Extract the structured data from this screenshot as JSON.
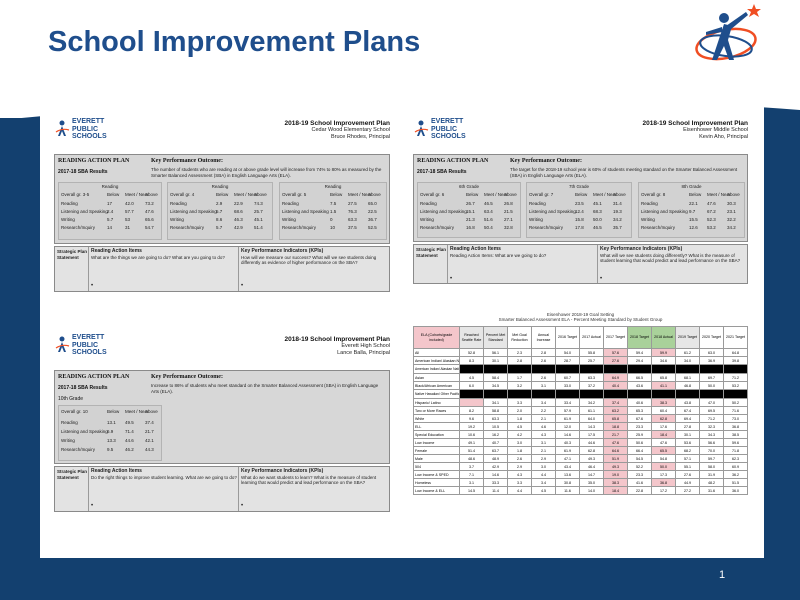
{
  "slide": {
    "title": "School Improvement Plans",
    "page_number": "1",
    "brand_colors": {
      "title": "#1f4e8c",
      "band": "#13406f",
      "accent": "#f04e23"
    }
  },
  "logo": {
    "icon": "everett-logo-icon",
    "line1": "EVERETT",
    "line2": "PUBLIC",
    "line3": "SCHOOLS"
  },
  "documents": [
    {
      "plan_title": "2018-19 School Improvement Plan",
      "school": "Cedar Wood Elementary School",
      "principal": "Bruce Rhodes, Principal",
      "panel_title": "READING ACTION PLAN",
      "kpo_title": "Key Performance Outcome:",
      "kpo_text": "The number of students who are reading at or above grade level will increase from 74% to 80% as measured by the Smarter Balanced Assessment (SBA) in English Language Arts (ELA).",
      "sba_label": "2017-18 SBA Results",
      "groups": [
        {
          "label": "Reading",
          "cols": [
            "Overall gr. 3-5",
            "Below",
            "Meet / Near",
            "Above"
          ],
          "rows": [
            [
              "Reading",
              "17",
              "42.0",
              "73.2"
            ],
            [
              "Listening and Speaking",
              "2.4",
              "57.7",
              "47.6"
            ],
            [
              "Writing",
              "5.7",
              "53",
              "65.6"
            ],
            [
              "Research/Inquiry",
              "14",
              "31",
              "54.7"
            ]
          ]
        },
        {
          "label": "Reading",
          "cols": [
            "Overall gr. 4",
            "Below",
            "Meet / Near",
            "Above"
          ],
          "rows": [
            [
              "Reading",
              "2.9",
              "22.9",
              "74.3"
            ],
            [
              "Listening and Speaking",
              "5.7",
              "68.6",
              "25.7"
            ],
            [
              "Writing",
              "8.6",
              "46.3",
              "45.1"
            ],
            [
              "Research/Inquiry",
              "5.7",
              "42.9",
              "51.4"
            ]
          ]
        },
        {
          "label": "Reading",
          "cols": [
            "Overall gr. 5",
            "Below",
            "Meet / Near",
            "Above"
          ],
          "rows": [
            [
              "Reading",
              "7.5",
              "27.5",
              "65.0"
            ],
            [
              "Listening and Speaking",
              "1.5",
              "76.3",
              "22.5"
            ],
            [
              "Writing",
              "0",
              "63.3",
              "36.7"
            ],
            [
              "Research/Inquiry",
              "10",
              "37.5",
              "52.5"
            ]
          ]
        }
      ],
      "strategy_label": "Strategic Plan Statement",
      "actions_title": "Reading Action Items",
      "actions_text": "What are the things we are going to do? What are you going to do?",
      "kpi_title": "Key Performance Indicators (KPIs)",
      "kpi_text": "How will we measure our success? What will we see students doing differently as evidence of higher performance on the SBA?"
    },
    {
      "plan_title": "2018-19 School Improvement Plan",
      "school": "Eisenhower Middle School",
      "principal": "Kevin Aho, Principal",
      "panel_title": "READING ACTION PLAN",
      "kpo_title": "Key Performance Outcome:",
      "kpo_text": "The target for the 2018-19 school year is 60% of students meeting standard on the Smarter Balanced Assessment (SBA) in English Language Arts (ELA).",
      "sba_label": "2017-18 SBA Results",
      "groups": [
        {
          "label": "6th Grade",
          "cols": [
            "Overall gr. 6",
            "Below",
            "Meet / Near",
            "Above"
          ],
          "rows": [
            [
              "Reading",
              "26.7",
              "46.5",
              "26.8"
            ],
            [
              "Listening and Speaking",
              "15.1",
              "63.4",
              "21.5"
            ],
            [
              "Writing",
              "21.3",
              "51.6",
              "27.1"
            ],
            [
              "Research/Inquiry",
              "16.8",
              "50.4",
              "32.8"
            ]
          ]
        },
        {
          "label": "7th Grade",
          "cols": [
            "Overall gr. 7",
            "Below",
            "Meet / Near",
            "Above"
          ],
          "rows": [
            [
              "Reading",
              "23.5",
              "45.1",
              "31.4"
            ],
            [
              "Listening and Speaking",
              "12.4",
              "68.3",
              "19.3"
            ],
            [
              "Writing",
              "15.8",
              "50.0",
              "34.2"
            ],
            [
              "Research/Inquiry",
              "17.8",
              "46.5",
              "35.7"
            ]
          ]
        },
        {
          "label": "8th Grade",
          "cols": [
            "Overall gr. 8",
            "Below",
            "Meet / Near",
            "Above"
          ],
          "rows": [
            [
              "Reading",
              "22.1",
              "47.6",
              "30.3"
            ],
            [
              "Listening and Speaking",
              "9.7",
              "67.2",
              "23.1"
            ],
            [
              "Writing",
              "15.5",
              "52.3",
              "32.2"
            ],
            [
              "Research/Inquiry",
              "12.6",
              "53.2",
              "34.2"
            ]
          ]
        }
      ],
      "strategy_label": "Strategic Plan Statement",
      "actions_title": "Reading Action Items",
      "actions_text": "Reading Action Items: What are we going to do?",
      "kpi_title": "Key Performance Indicators (KPIs)",
      "kpi_text": "What will we see students doing differently? What is the measure of student learning that would predict and lead performance on the SBA?"
    },
    {
      "plan_title": "2018-19 School Improvement Plan",
      "school": "Everett High School",
      "principal": "Lance Balla, Principal",
      "panel_title": "READING ACTION PLAN",
      "kpo_title": "Key Performance Outcome:",
      "kpo_text": "Increase to 86% of students who meet standard on the Smarter Balanced Assessment (SBA) in English Language Arts (ELA).",
      "sba_label": "2017-18 SBA Results",
      "sub_label": "10th Grade",
      "groups": [
        {
          "label": "",
          "cols": [
            "Overall gr. 10",
            "Below",
            "Meet / Near",
            "Above"
          ],
          "rows": [
            [
              "Reading",
              "13.1",
              "49.5",
              "37.4"
            ],
            [
              "Listening and Speaking",
              "6.9",
              "71.4",
              "21.7"
            ],
            [
              "Writing",
              "13.3",
              "44.6",
              "42.1"
            ],
            [
              "Research/Inquiry",
              "9.5",
              "46.2",
              "44.3"
            ]
          ]
        }
      ],
      "strategy_label": "Strategic Plan Statement",
      "actions_title": "Reading Action Items",
      "actions_text": "Do the right things to improve student learning. What are we going to do?",
      "kpi_title": "Key Performance Indicators (KPIs)",
      "kpi_text": "What do we want students to learn? What is the measure of student learning that would predict and lead performance on the SBA?"
    }
  ],
  "results_table": {
    "caption_line1": "Eisenhower 2018-19 Goal Setting",
    "caption_line2": "Smarter Balanced Assessment ELA - Percent Meeting Standard by Student Group",
    "headers": [
      "ELA (Cohorts/grade included)",
      "Reached Seattle Rate",
      "Percent Met Standard",
      "Met Goal Reduction",
      "Annual Increase",
      "2016 Target",
      "2017 Actual",
      "2017 Target",
      "2018 Target",
      "2018 Actual",
      "2019 Target",
      "2020 Target",
      "2021 Target"
    ],
    "rows": [
      [
        "All",
        "52.8",
        "56.1",
        "2.3",
        "2.8",
        "54.0",
        "55.8",
        "57.6",
        "59.4",
        "59.9",
        "61.2",
        "63.0",
        "64.8"
      ],
      [
        "American Indian/ Alaskan Native",
        "8.3",
        "30.1",
        "2.8",
        "2.6",
        "28.7",
        "25.7",
        "27.6",
        "29.4",
        "34.6",
        "34.0",
        "36.9",
        "39.8"
      ],
      [
        "American Indian/ Alaskan Native",
        "",
        "",
        "",
        "",
        "",
        "",
        "",
        "",
        "",
        "",
        "",
        ""
      ],
      [
        "Asian",
        "4.5",
        "58.4",
        "1.7",
        "2.6",
        "60.7",
        "63.3",
        "64.9",
        "66.5",
        "65.8",
        "68.1",
        "69.7",
        "71.2"
      ],
      [
        "Black/African American",
        "6.0",
        "34.5",
        "3.2",
        "3.1",
        "33.0",
        "37.2",
        "40.4",
        "43.6",
        "41.1",
        "46.8",
        "50.0",
        "53.2"
      ],
      [
        "Native Hawaiian/ Other Pacific Islander",
        "",
        "",
        "",
        "",
        "",
        "",
        "",
        "",
        "",
        "",
        "",
        ""
      ],
      [
        "Hispanic/ Latino",
        "",
        "34.1",
        "3.3",
        "3.4",
        "33.4",
        "34.2",
        "37.4",
        "40.6",
        "38.3",
        "43.8",
        "47.0",
        "50.2"
      ],
      [
        "Two or More Races",
        "8.2",
        "58.8",
        "2.0",
        "2.2",
        "57.9",
        "61.1",
        "63.2",
        "65.3",
        "60.4",
        "67.4",
        "69.5",
        "71.6"
      ],
      [
        "White",
        "9.6",
        "63.3",
        "1.8",
        "2.1",
        "61.9",
        "64.0",
        "65.8",
        "67.6",
        "62.8",
        "69.4",
        "71.2",
        "73.0"
      ],
      [
        "ELL",
        "19.2",
        "10.5",
        "4.5",
        "4.6",
        "12.0",
        "14.3",
        "18.8",
        "23.3",
        "17.6",
        "27.8",
        "32.3",
        "36.8"
      ],
      [
        "Special Education",
        "10.6",
        "16.2",
        "4.2",
        "4.3",
        "14.6",
        "17.5",
        "21.7",
        "25.9",
        "18.4",
        "30.1",
        "34.3",
        "38.5"
      ],
      [
        "Low Income",
        "49.1",
        "40.7",
        "3.0",
        "3.1",
        "40.3",
        "44.6",
        "47.6",
        "50.6",
        "47.6",
        "53.6",
        "56.6",
        "59.6"
      ],
      [
        "Female",
        "51.4",
        "63.7",
        "1.8",
        "2.1",
        "61.9",
        "62.8",
        "64.6",
        "66.4",
        "65.5",
        "68.2",
        "70.0",
        "71.8"
      ],
      [
        "Male",
        "48.6",
        "48.9",
        "2.6",
        "2.9",
        "47.1",
        "49.3",
        "51.9",
        "54.5",
        "54.8",
        "57.1",
        "59.7",
        "62.3"
      ],
      [
        "504",
        "3.7",
        "42.9",
        "2.9",
        "3.0",
        "43.4",
        "46.4",
        "49.3",
        "52.2",
        "50.0",
        "55.1",
        "58.0",
        "60.9"
      ],
      [
        "Low Income & SPED",
        "7.1",
        "14.6",
        "4.3",
        "4.4",
        "13.6",
        "14.7",
        "19.0",
        "23.3",
        "17.3",
        "27.6",
        "31.9",
        "36.2"
      ],
      [
        "Homeless",
        "3.1",
        "33.3",
        "3.3",
        "3.4",
        "30.8",
        "35.0",
        "38.3",
        "41.6",
        "36.8",
        "44.9",
        "48.2",
        "51.5"
      ],
      [
        "Low Income & ELL",
        "14.5",
        "11.4",
        "4.4",
        "4.5",
        "11.6",
        "14.0",
        "18.4",
        "22.8",
        "17.2",
        "27.2",
        "31.6",
        "36.0"
      ]
    ]
  }
}
